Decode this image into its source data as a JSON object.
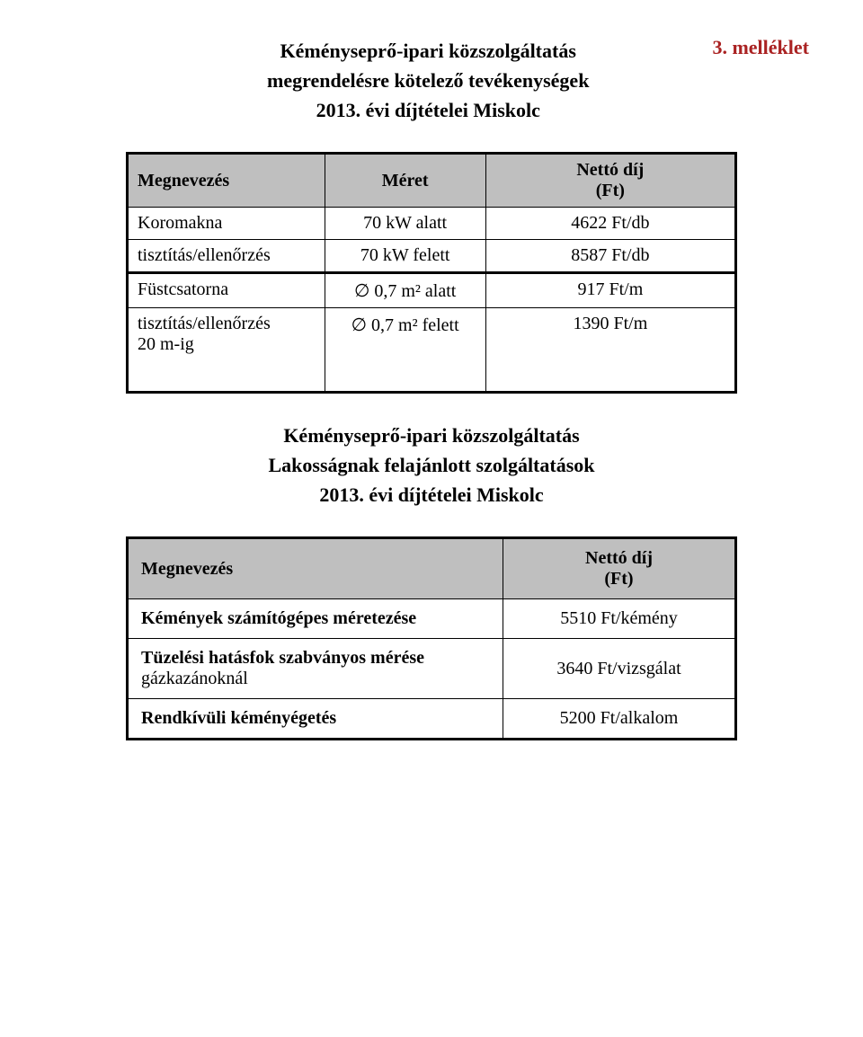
{
  "attachment_label": "3. melléklet",
  "header": {
    "line1": "Kéményseprő-ipari közszolgáltatás",
    "line2": "megrendelésre kötelező tevékenységek",
    "line3": "2013. évi díjtételei Miskolc"
  },
  "table1": {
    "headers": {
      "name": "Megnevezés",
      "size": "Méret",
      "price": "Nettó díj",
      "price_unit": "(Ft)"
    },
    "rows": [
      {
        "name": "Koromakna",
        "size": "70 kW alatt",
        "price": "4622 Ft/db"
      },
      {
        "name": "tisztítás/ellenőrzés",
        "size": "70 kW felett",
        "price": "8587 Ft/db"
      },
      {
        "name": "Füstcsatorna",
        "size": "∅ 0,7 m² alatt",
        "price": "917 Ft/m"
      },
      {
        "name": "tisztítás/ellenőrzés",
        "size": "∅ 0,7 m² felett",
        "price": "1390 Ft/m"
      },
      {
        "name": "20 m-ig",
        "size": "",
        "price": ""
      }
    ]
  },
  "section2": {
    "line1": "Kéményseprő-ipari közszolgáltatás",
    "line2": "Lakosságnak felajánlott szolgáltatások",
    "line3": "2013. évi díjtételei Miskolc"
  },
  "table2": {
    "headers": {
      "name": "Megnevezés",
      "price": "Nettó díj",
      "price_unit": "(Ft)"
    },
    "rows": [
      {
        "name": "Kémények számítógépes méretezése",
        "sub": "",
        "price": "5510 Ft/kémény"
      },
      {
        "name": "Tüzelési hatásfok szabványos mérése",
        "sub": "gázkazánoknál",
        "price": "3640 Ft/vizsgálat"
      },
      {
        "name": "Rendkívüli kéményégetés",
        "sub": "",
        "price": "5200 Ft/alkalom"
      }
    ]
  },
  "colors": {
    "header_bg": "#bfbfbf",
    "attachment_text": "#aa2222",
    "border": "#000000",
    "background": "#ffffff"
  },
  "typography": {
    "family": "Times New Roman",
    "title_size_pt": 16,
    "cell_size_pt": 15
  }
}
